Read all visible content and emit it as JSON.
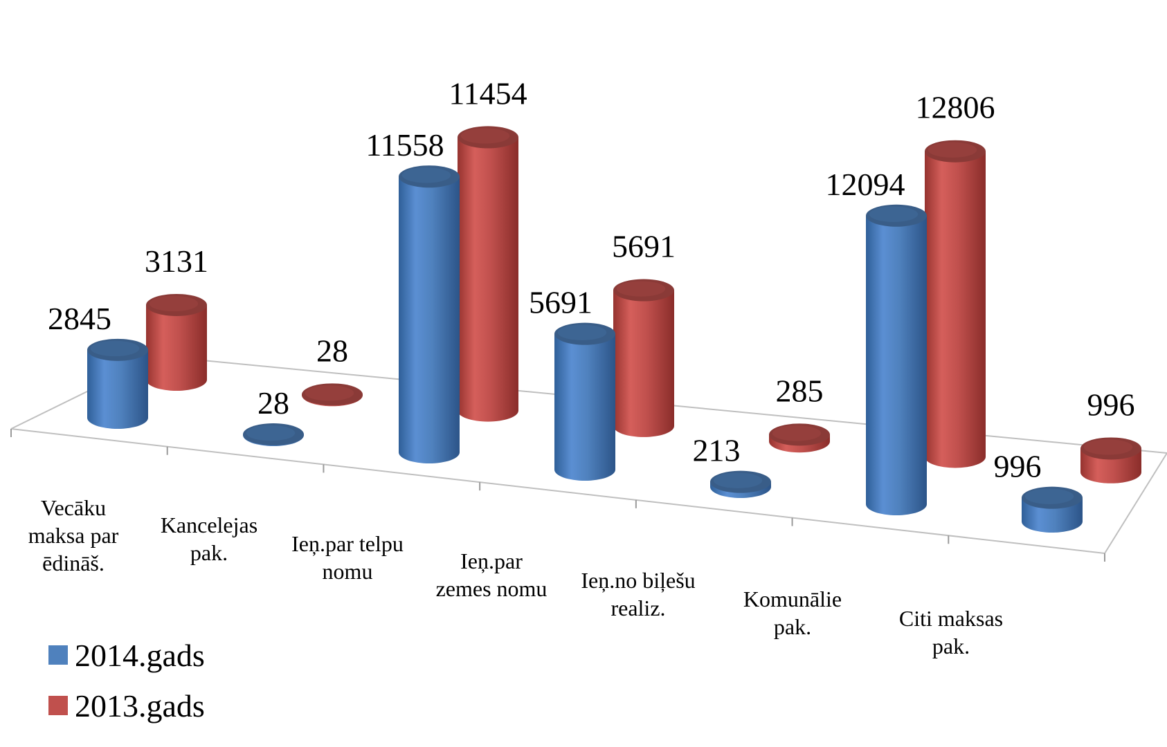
{
  "chart_data": {
    "type": "bar",
    "style": "3d-cylinder",
    "categories": [
      [
        "Vecāku",
        "maksa par",
        "ēdināš."
      ],
      [
        "Kancelejas",
        "pak."
      ],
      [
        "Ieņ.par telpu",
        "nomu"
      ],
      [
        "Ieņ.par",
        "zemes nomu"
      ],
      [
        "Ieņ.no biļešu",
        "realiz."
      ],
      [
        "Komunālie",
        "pak."
      ],
      [
        "Citi maksas",
        "pak."
      ]
    ],
    "series": [
      {
        "name": "2014.gads",
        "color": "#4F81BD",
        "values": [
          2845,
          28,
          11558,
          5691,
          213,
          12094,
          996
        ],
        "labels": [
          "2845",
          "28",
          "11558",
          "5691",
          "213",
          "12094",
          "996"
        ]
      },
      {
        "name": "2013.gads",
        "color": "#C0504D",
        "values": [
          3131,
          28,
          11454,
          5691,
          285,
          12806,
          996
        ],
        "labels": [
          "3131",
          "28",
          "11454",
          "5691",
          "285",
          "12806",
          "996"
        ]
      }
    ],
    "legend_position": "bottom-left",
    "gridlines": false
  }
}
